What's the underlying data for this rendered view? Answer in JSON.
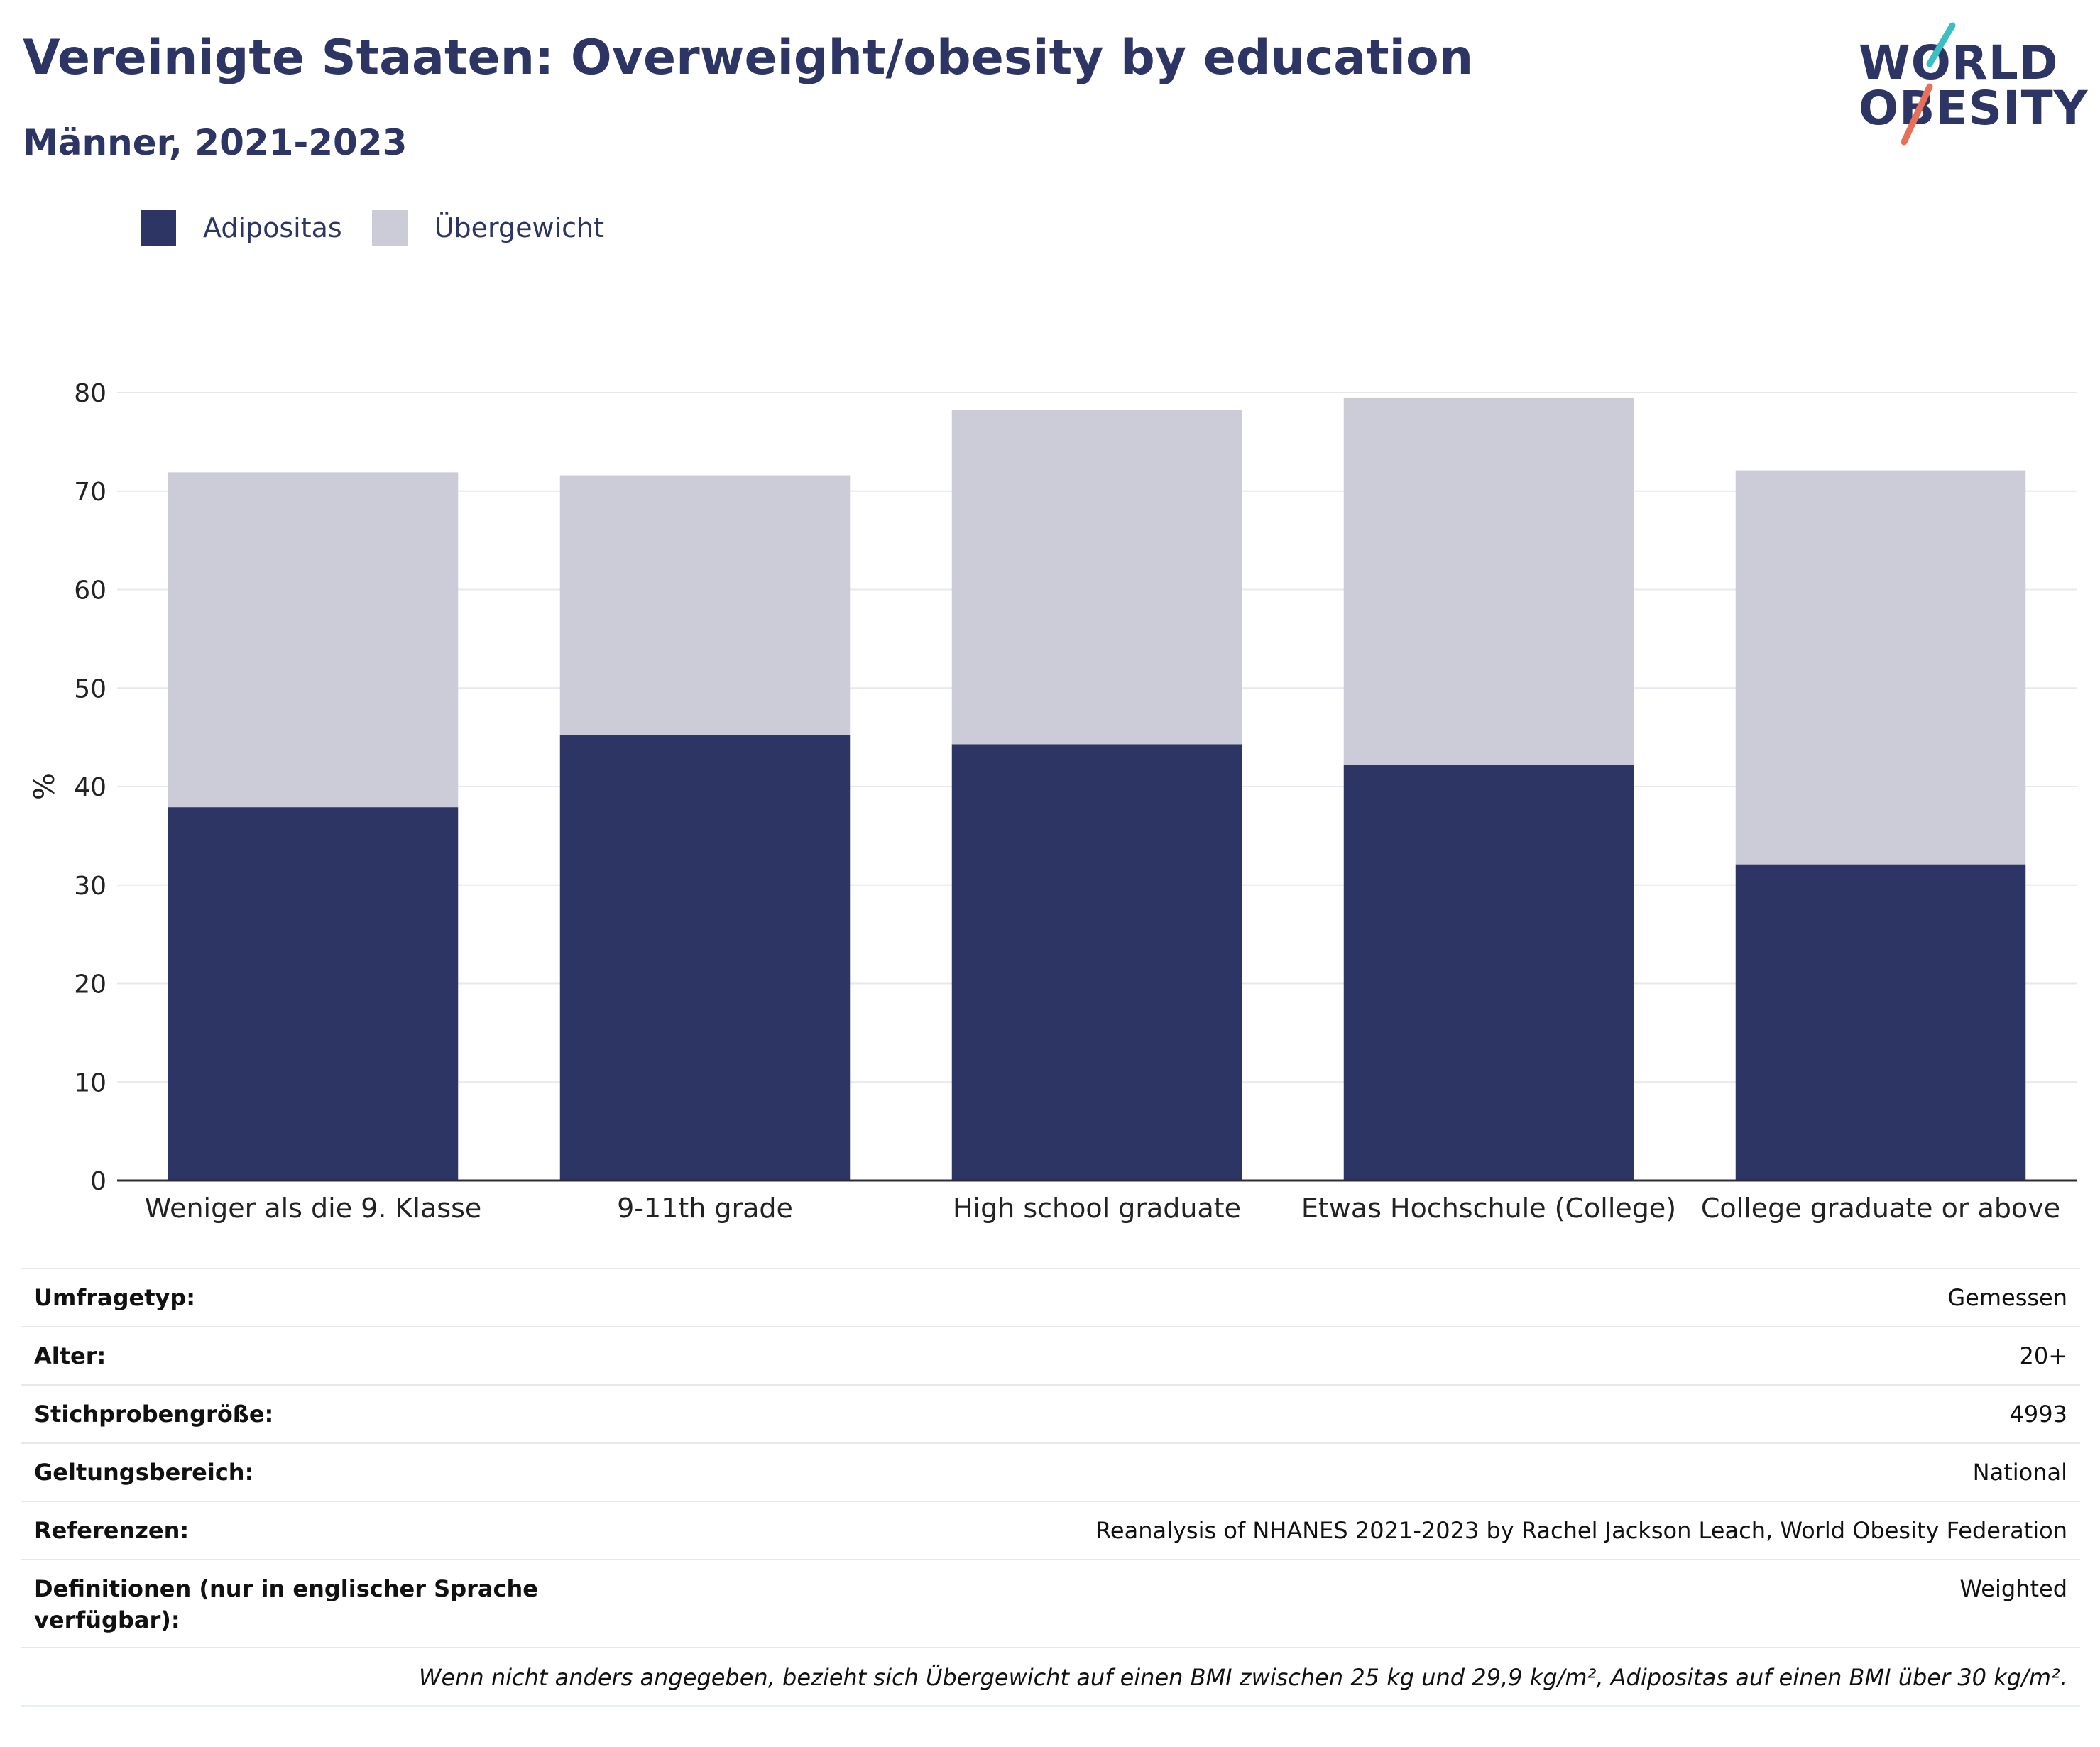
{
  "header": {
    "title": "Vereinigte Staaten: Overweight/obesity by education",
    "subtitle": "Männer, 2021-2023"
  },
  "logo": {
    "line1": "WORLD",
    "line2": "OBESITY",
    "accent_colors": [
      "#3bbfc4",
      "#e8705a"
    ]
  },
  "legend": {
    "items": [
      {
        "label": "Adipositas",
        "color": "#2c3563"
      },
      {
        "label": "Übergewicht",
        "color": "#cbccd8"
      }
    ]
  },
  "chart_data": {
    "type": "bar",
    "stacked": true,
    "categories": [
      "Weniger als die 9. Klasse",
      "9-11th grade",
      "High school graduate",
      "Etwas Hochschule (College)",
      "College graduate or above"
    ],
    "series": [
      {
        "name": "Adipositas",
        "color": "#2c3563",
        "values": [
          37.9,
          45.2,
          44.3,
          42.2,
          32.1
        ]
      },
      {
        "name": "Übergewicht",
        "color": "#cbccd8",
        "values": [
          34.0,
          26.4,
          33.9,
          37.3,
          40.0
        ]
      }
    ],
    "ylabel": "%",
    "xlabel": "",
    "ylim": [
      0,
      80
    ],
    "yticks": [
      0,
      10,
      20,
      30,
      40,
      50,
      60,
      70,
      80
    ],
    "grid": true,
    "legend_position": "top-left"
  },
  "metadata": {
    "rows": [
      {
        "key": "Umfragetyp:",
        "value": "Gemessen"
      },
      {
        "key": "Alter:",
        "value": "20+"
      },
      {
        "key": "Stichprobengröße:",
        "value": "4993"
      },
      {
        "key": "Geltungsbereich:",
        "value": "National"
      },
      {
        "key": "Referenzen:",
        "value": "Reanalysis of NHANES 2021-2023 by Rachel Jackson Leach, World Obesity Federation"
      },
      {
        "key": "Definitionen (nur in englischer Sprache verfügbar):",
        "value": "Weighted"
      }
    ],
    "note": "Wenn nicht anders angegeben, bezieht sich Übergewicht auf einen BMI zwischen 25 kg und 29,9 kg/m², Adipositas auf einen BMI über 30 kg/m²."
  }
}
